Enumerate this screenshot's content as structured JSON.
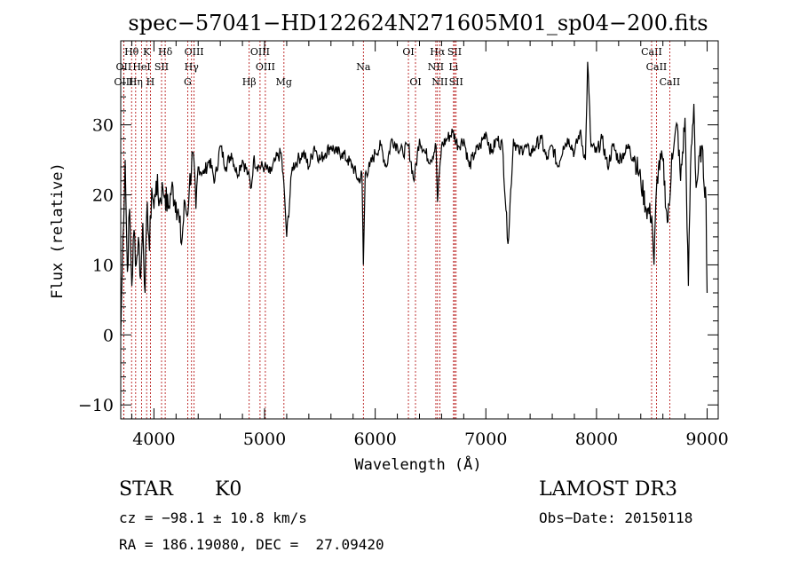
{
  "chart_data": {
    "type": "line",
    "title": "spec−57041−HD122624N271605M01_sp04−200.fits",
    "xlabel": "Wavelength (Å)",
    "ylabel": "Flux (relative)",
    "xlim": [
      3700,
      9100
    ],
    "ylim": [
      -12,
      42
    ],
    "xticks": [
      {
        "value": 4000,
        "label": "4000"
      },
      {
        "value": 5000,
        "label": "5000"
      },
      {
        "value": 6000,
        "label": "6000"
      },
      {
        "value": 7000,
        "label": "7000"
      },
      {
        "value": 8000,
        "label": "8000"
      },
      {
        "value": 9000,
        "label": "9000"
      }
    ],
    "yticks": [
      {
        "value": -10,
        "label": "−10"
      },
      {
        "value": 0,
        "label": "0"
      },
      {
        "value": 10,
        "label": "10"
      },
      {
        "value": 20,
        "label": "20"
      },
      {
        "value": 30,
        "label": "30"
      }
    ],
    "series": [
      {
        "name": "flux",
        "color": "#000000",
        "x": [
          3700,
          3720,
          3740,
          3760,
          3780,
          3800,
          3820,
          3840,
          3860,
          3880,
          3900,
          3920,
          3940,
          3960,
          3980,
          4000,
          4020,
          4050,
          4080,
          4100,
          4130,
          4160,
          4200,
          4230,
          4250,
          4280,
          4300,
          4320,
          4350,
          4380,
          4400,
          4450,
          4500,
          4550,
          4600,
          4650,
          4700,
          4750,
          4800,
          4850,
          4880,
          4900,
          4950,
          5000,
          5050,
          5100,
          5150,
          5180,
          5200,
          5250,
          5300,
          5350,
          5400,
          5450,
          5500,
          5550,
          5600,
          5650,
          5700,
          5750,
          5800,
          5850,
          5880,
          5893,
          5910,
          5950,
          6000,
          6050,
          6100,
          6150,
          6200,
          6250,
          6300,
          6350,
          6400,
          6450,
          6500,
          6550,
          6563,
          6580,
          6600,
          6650,
          6700,
          6750,
          6800,
          6850,
          6900,
          6950,
          7000,
          7050,
          7100,
          7150,
          7200,
          7250,
          7300,
          7350,
          7400,
          7450,
          7500,
          7550,
          7600,
          7650,
          7700,
          7750,
          7800,
          7850,
          7900,
          7920,
          7950,
          8000,
          8050,
          8100,
          8150,
          8200,
          8250,
          8300,
          8350,
          8400,
          8450,
          8500,
          8520,
          8542,
          8560,
          8600,
          8640,
          8662,
          8680,
          8700,
          8730,
          8760,
          8800,
          8830,
          8850,
          8880,
          8900,
          8950,
          8990,
          9000
        ],
        "y": [
          0,
          14,
          25,
          9,
          18,
          7,
          15,
          10,
          14,
          8,
          16,
          6,
          19,
          12,
          21,
          18,
          22,
          19,
          21,
          20,
          18,
          21,
          19,
          16,
          13,
          19,
          17,
          21,
          26,
          18,
          24,
          23,
          25,
          22,
          27,
          24,
          26,
          23,
          25,
          23,
          21,
          25,
          24,
          24,
          23,
          25,
          26,
          20,
          14,
          24,
          25,
          26,
          24,
          27,
          25,
          26,
          27,
          26,
          26,
          25,
          24,
          22,
          23,
          10,
          23,
          24,
          26,
          27,
          24,
          28,
          27,
          26,
          27,
          22,
          28,
          26,
          25,
          27,
          19,
          23,
          27,
          28,
          29,
          27,
          28,
          24,
          26,
          27,
          29,
          26,
          28,
          27,
          13,
          28,
          26,
          27,
          26,
          27,
          28,
          25,
          27,
          24,
          27,
          28,
          26,
          29,
          25,
          39,
          27,
          26,
          28,
          24,
          27,
          25,
          26,
          27,
          25,
          22,
          18,
          17,
          10,
          21,
          24,
          25,
          16,
          19,
          26,
          27,
          30,
          22,
          31,
          7,
          24,
          33,
          21,
          27,
          19,
          6
        ]
      }
    ],
    "lines": [
      {
        "label": "Hθ",
        "wave": 3798,
        "row": 0
      },
      {
        "label": "OII",
        "wave": 3727,
        "row": 1
      },
      {
        "label": "OIII",
        "wave": 3727,
        "row": 2
      },
      {
        "label": "K",
        "wave": 3934,
        "row": 0
      },
      {
        "label": "HeI",
        "wave": 3889,
        "row": 1
      },
      {
        "label": "Hη",
        "wave": 3835,
        "row": 2
      },
      {
        "label": "H",
        "wave": 3968,
        "row": 2
      },
      {
        "label": "SII",
        "wave": 4069,
        "row": 1
      },
      {
        "label": "Hδ",
        "wave": 4102,
        "row": 0
      },
      {
        "label": "OIII",
        "wave": 4363,
        "row": 0
      },
      {
        "label": "Hγ",
        "wave": 4340,
        "row": 1
      },
      {
        "label": "G",
        "wave": 4305,
        "row": 2
      },
      {
        "label": "Hβ",
        "wave": 4861,
        "row": 2
      },
      {
        "label": "OIII",
        "wave": 4959,
        "row": 0
      },
      {
        "label": "OIII",
        "wave": 5007,
        "row": 1
      },
      {
        "label": "Mg",
        "wave": 5175,
        "row": 2
      },
      {
        "label": "Na",
        "wave": 5893,
        "row": 1
      },
      {
        "label": "OI",
        "wave": 6300,
        "row": 0
      },
      {
        "label": "OI",
        "wave": 6364,
        "row": 2
      },
      {
        "label": "Hα",
        "wave": 6563,
        "row": 0
      },
      {
        "label": "NII",
        "wave": 6548,
        "row": 1
      },
      {
        "label": "NII",
        "wave": 6584,
        "row": 2
      },
      {
        "label": "SII",
        "wave": 6717,
        "row": 0
      },
      {
        "label": "Li",
        "wave": 6708,
        "row": 1
      },
      {
        "label": "SII",
        "wave": 6731,
        "row": 2
      },
      {
        "label": "CaII",
        "wave": 8498,
        "row": 0
      },
      {
        "label": "CaII",
        "wave": 8542,
        "row": 1
      },
      {
        "label": "CaII",
        "wave": 8662,
        "row": 2
      }
    ]
  },
  "info": {
    "object_class": "STAR",
    "subclass": "K0",
    "survey": "LAMOST DR3",
    "cz": "cz = −98.1 ± 10.8 km/s",
    "obs_date": "Obs−Date: 20150118",
    "coords": "RA = 186.19080, DEC =  27.09420"
  }
}
